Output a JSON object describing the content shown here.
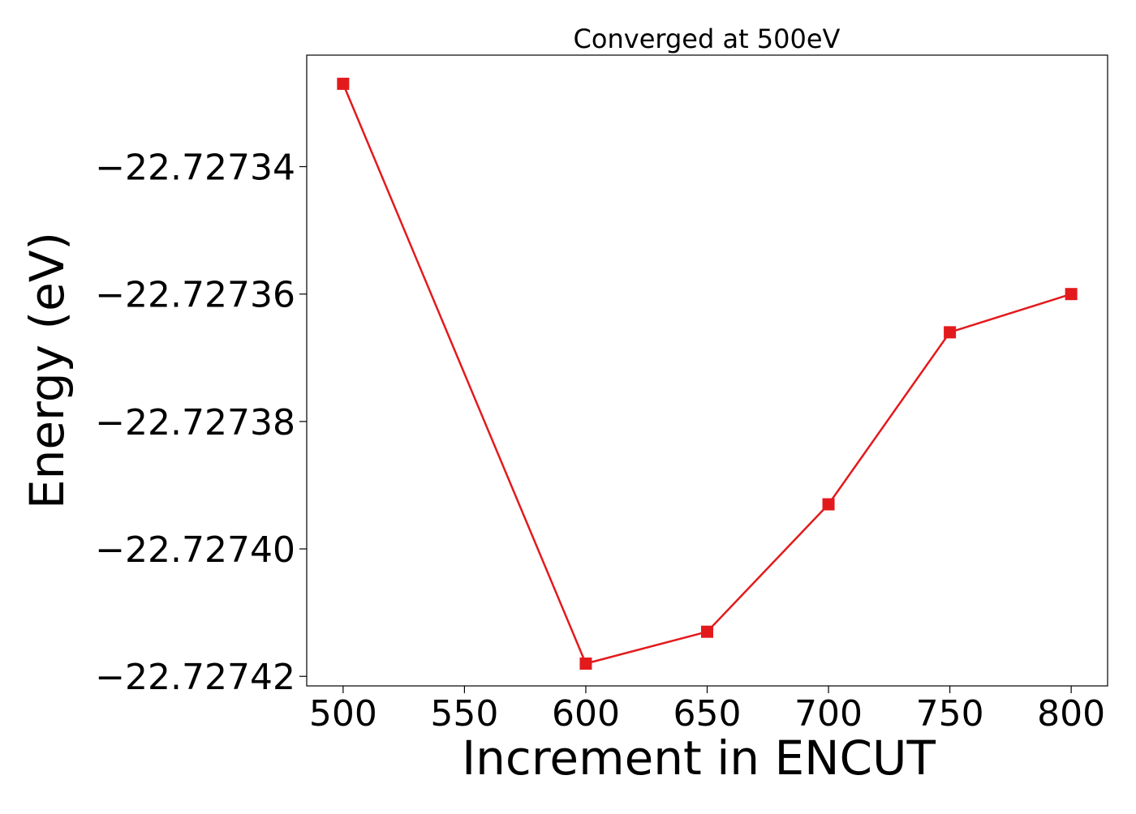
{
  "chart_data": {
    "type": "line",
    "title": "Converged at 500eV",
    "xlabel": "Increment in ENCUT",
    "ylabel": "Energy (eV)",
    "x": [
      500,
      600,
      650,
      700,
      750,
      800
    ],
    "series": [
      {
        "values": [
          -22.727327,
          -22.727418,
          -22.727413,
          -22.727393,
          -22.727366,
          -22.72736
        ],
        "color": "#e31a1c",
        "marker": "square"
      }
    ],
    "xlim": [
      485,
      815
    ],
    "ylim": [
      -22.7274215,
      -22.7273225
    ],
    "xticks": [
      500,
      550,
      600,
      650,
      700,
      750,
      800
    ],
    "xtick_labels": [
      "500",
      "550",
      "600",
      "650",
      "700",
      "750",
      "800"
    ],
    "yticks": [
      -22.72742,
      -22.7274,
      -22.72738,
      -22.72736,
      -22.72734
    ],
    "ytick_labels": [
      "−22.72742",
      "−22.72740",
      "−22.72738",
      "−22.72736",
      "−22.72734"
    ],
    "grid": false,
    "legend": "none"
  }
}
